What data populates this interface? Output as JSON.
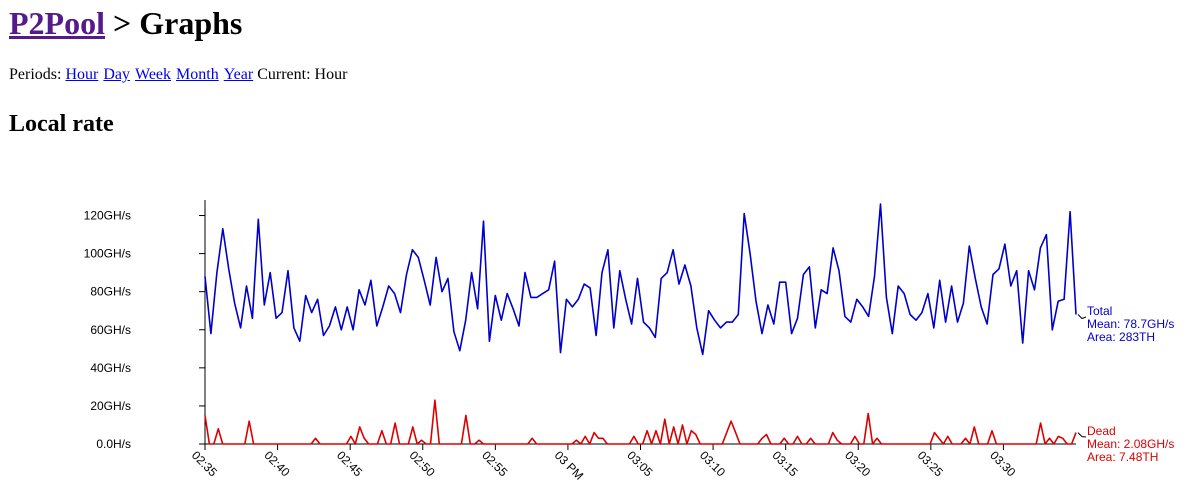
{
  "header": {
    "home_link": "P2Pool",
    "separator": " > ",
    "page": "Graphs"
  },
  "periods": {
    "label": "Periods:",
    "links": [
      "Hour",
      "Day",
      "Week",
      "Month",
      "Year"
    ],
    "current_label": "Current:",
    "current_value": "Hour"
  },
  "section": {
    "title": "Local rate"
  },
  "chart_data": {
    "type": "line",
    "title": "",
    "xlabel": "",
    "ylabel": "",
    "ylim": [
      0,
      125
    ],
    "yticks": [
      {
        "value": 0,
        "label": "0.0H/s"
      },
      {
        "value": 20,
        "label": "20GH/s"
      },
      {
        "value": 40,
        "label": "40GH/s"
      },
      {
        "value": 60,
        "label": "60GH/s"
      },
      {
        "value": 80,
        "label": "80GH/s"
      },
      {
        "value": 100,
        "label": "100GH/s"
      },
      {
        "value": 120,
        "label": "120GH/s"
      }
    ],
    "xlim": [
      0,
      60
    ],
    "xticks": [
      {
        "value": 0,
        "label": "02:35"
      },
      {
        "value": 5,
        "label": "02:40"
      },
      {
        "value": 10,
        "label": "02:45"
      },
      {
        "value": 15,
        "label": "02:50"
      },
      {
        "value": 20,
        "label": "02:55"
      },
      {
        "value": 25,
        "label": "03 PM"
      },
      {
        "value": 30,
        "label": "03:05"
      },
      {
        "value": 35,
        "label": "03:10"
      },
      {
        "value": 40,
        "label": "03:15"
      },
      {
        "value": 45,
        "label": "03:20"
      },
      {
        "value": 50,
        "label": "03:25"
      },
      {
        "value": 55,
        "label": "03:30"
      }
    ],
    "legend_placement": "right",
    "series": [
      {
        "name": "Total",
        "color": "#0000cc",
        "mean_label": "Mean: 78.7GH/s",
        "area_label": "Area: 283TH",
        "values": [
          88,
          58,
          90,
          113,
          92,
          74,
          61,
          83,
          66,
          118,
          73,
          90,
          66,
          69,
          91,
          61,
          54,
          78,
          69,
          76,
          57,
          62,
          72,
          60,
          72,
          60,
          81,
          73,
          86,
          62,
          72,
          83,
          79,
          69,
          89,
          102,
          98,
          86,
          73,
          98,
          80,
          87,
          59,
          49,
          65,
          90,
          71,
          117,
          54,
          78,
          65,
          79,
          71,
          62,
          90,
          77,
          77,
          79,
          81,
          96,
          48,
          76,
          72,
          76,
          84,
          82,
          57,
          90,
          102,
          61,
          91,
          76,
          63,
          87,
          64,
          61,
          56,
          87,
          90,
          102,
          84,
          94,
          83,
          61,
          47,
          70,
          65,
          61,
          64,
          64,
          68,
          121,
          100,
          75,
          58,
          73,
          63,
          85,
          85,
          58,
          66,
          89,
          93,
          61,
          81,
          79,
          103,
          91,
          67,
          64,
          76,
          72,
          67,
          88,
          126,
          77,
          58,
          83,
          79,
          68,
          65,
          69,
          79,
          61,
          86,
          64,
          83,
          64,
          74,
          104,
          87,
          72,
          63,
          89,
          92,
          105,
          83,
          91,
          53,
          91,
          81,
          103,
          110,
          60,
          75,
          76,
          122,
          68
        ]
      },
      {
        "name": "Dead",
        "color": "#dd0000",
        "mean_label": "Mean: 2.08GH/s",
        "area_label": "Area: 7.48TH",
        "values": [
          15,
          0,
          0,
          8,
          0,
          0,
          0,
          0,
          0,
          0,
          12,
          0,
          0,
          0,
          0,
          0,
          0,
          0,
          0,
          0,
          0,
          0,
          0,
          0,
          0,
          3,
          0,
          0,
          0,
          0,
          0,
          0,
          0,
          4,
          0,
          9,
          3,
          0,
          0,
          0,
          7,
          0,
          0,
          11,
          0,
          0,
          0,
          9,
          0,
          2,
          0,
          0,
          23,
          0,
          0,
          0,
          0,
          0,
          0,
          15,
          0,
          0,
          2,
          0,
          0,
          0,
          0,
          0,
          0,
          0,
          0,
          0,
          0,
          0,
          3,
          0,
          0,
          0,
          0,
          0,
          0,
          0,
          0,
          0,
          2,
          0,
          4,
          0,
          6,
          3,
          3,
          0,
          0,
          0,
          0,
          0,
          0,
          4,
          0,
          0,
          7,
          0,
          7,
          0,
          13,
          0,
          9,
          0,
          10,
          0,
          7,
          5,
          0,
          0,
          0,
          0,
          0,
          0,
          6,
          12,
          6,
          0,
          0,
          0,
          0,
          0,
          3,
          5,
          0,
          0,
          0,
          3,
          0,
          0,
          4,
          0,
          0,
          3,
          0,
          0,
          0,
          0,
          6,
          2,
          0,
          0,
          0,
          4,
          0,
          0,
          16,
          0,
          3,
          0,
          0,
          0,
          0,
          0,
          0,
          0,
          0,
          0,
          0,
          0,
          0,
          6,
          3,
          0,
          4,
          0,
          0,
          0,
          3,
          0,
          9,
          0,
          0,
          0,
          7,
          0,
          0,
          0,
          0,
          0,
          0,
          0,
          0,
          0,
          0,
          11,
          0,
          3,
          0,
          4,
          3,
          0,
          0,
          6
        ]
      }
    ]
  }
}
